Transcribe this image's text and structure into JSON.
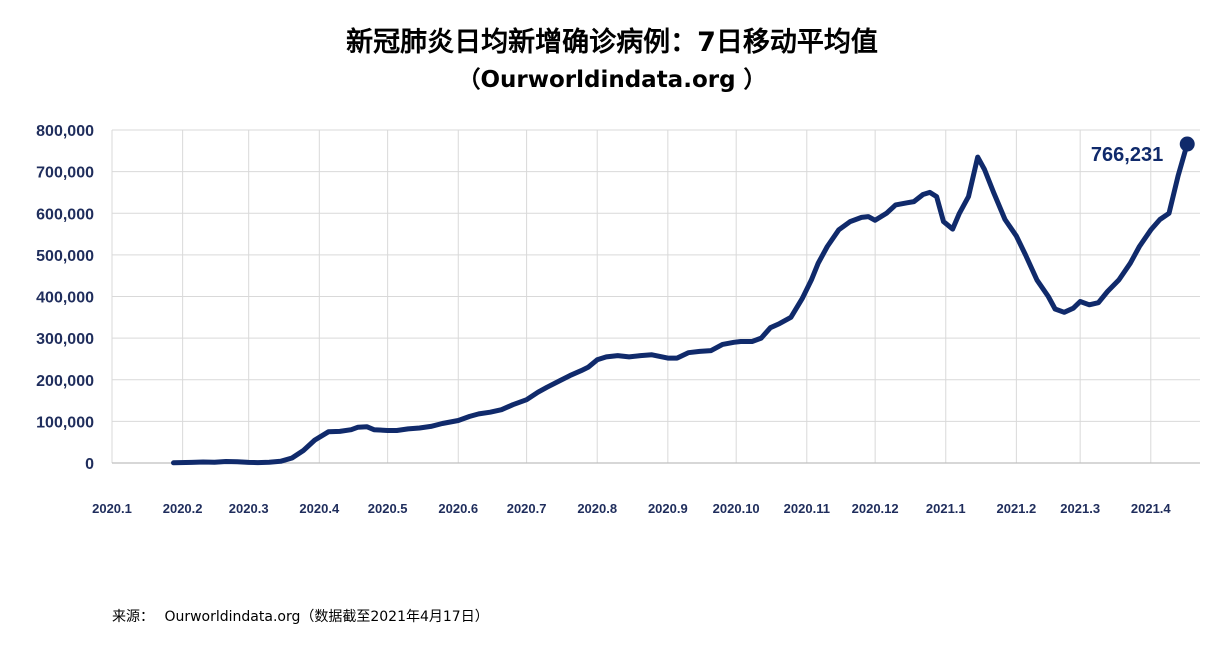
{
  "title_line1": "新冠肺炎日均新增确诊病例：7日移动平均值",
  "title_line2": "（Ourworldindata.org ）",
  "source_label": "来源：",
  "source_text": "Ourworldindata.org（数据截至2021年4月17日）",
  "colors": {
    "series": "#102a6b",
    "grid": "#d9d9d9",
    "axis_text": "#1f2d5c"
  },
  "chart_data": {
    "type": "line",
    "title": "新冠肺炎日均新增确诊病例：7日移动平均值",
    "subtitle": "（Ourworldindata.org ）",
    "xlabel": "",
    "ylabel": "",
    "ylim": [
      0,
      800000
    ],
    "yticks": [
      0,
      100000,
      200000,
      300000,
      400000,
      500000,
      600000,
      700000,
      800000
    ],
    "ytick_labels": [
      "0",
      "100,000",
      "200,000",
      "300,000",
      "400,000",
      "500,000",
      "600,000",
      "700,000",
      "800,000"
    ],
    "xlim": [
      "2020-01-01",
      "2021-04-17"
    ],
    "xticks": [
      "2020-01-01",
      "2020-02-01",
      "2020-03-01",
      "2020-04-01",
      "2020-05-01",
      "2020-06-01",
      "2020-07-01",
      "2020-08-01",
      "2020-09-01",
      "2020-10-01",
      "2020-11-01",
      "2020-12-01",
      "2021-01-01",
      "2021-02-01",
      "2021-03-01",
      "2021-04-01"
    ],
    "xtick_labels": [
      "2020.1",
      "2020.2",
      "2020.3",
      "2020.4",
      "2020.5",
      "2020.6",
      "2020.7",
      "2020.8",
      "2020.9",
      "2020.10",
      "2020.11",
      "2020.12",
      "2021.1",
      "2021.2",
      "2021.3",
      "2021.4"
    ],
    "grid": true,
    "series": [
      {
        "x": [
          "2020-01-28",
          "2020-02-05",
          "2020-02-10",
          "2020-02-15",
          "2020-02-20",
          "2020-02-25",
          "2020-03-01",
          "2020-03-05",
          "2020-03-10",
          "2020-03-15",
          "2020-03-20",
          "2020-03-25",
          "2020-03-30",
          "2020-04-05",
          "2020-04-10",
          "2020-04-15",
          "2020-04-18",
          "2020-04-22",
          "2020-04-25",
          "2020-05-01",
          "2020-05-05",
          "2020-05-10",
          "2020-05-15",
          "2020-05-20",
          "2020-05-25",
          "2020-06-01",
          "2020-06-06",
          "2020-06-10",
          "2020-06-15",
          "2020-06-20",
          "2020-06-25",
          "2020-07-01",
          "2020-07-06",
          "2020-07-10",
          "2020-07-15",
          "2020-07-20",
          "2020-07-25",
          "2020-07-28",
          "2020-08-01",
          "2020-08-05",
          "2020-08-10",
          "2020-08-15",
          "2020-08-20",
          "2020-08-25",
          "2020-09-01",
          "2020-09-05",
          "2020-09-10",
          "2020-09-15",
          "2020-09-20",
          "2020-09-25",
          "2020-09-30",
          "2020-10-03",
          "2020-10-08",
          "2020-10-12",
          "2020-10-16",
          "2020-10-20",
          "2020-10-25",
          "2020-10-30",
          "2020-11-03",
          "2020-11-06",
          "2020-11-10",
          "2020-11-15",
          "2020-11-20",
          "2020-11-25",
          "2020-11-28",
          "2020-12-01",
          "2020-12-06",
          "2020-12-10",
          "2020-12-15",
          "2020-12-18",
          "2020-12-22",
          "2020-12-25",
          "2020-12-28",
          "2020-12-31",
          "2021-01-04",
          "2021-01-07",
          "2021-01-11",
          "2021-01-15",
          "2021-01-18",
          "2021-01-22",
          "2021-01-27",
          "2021-02-01",
          "2021-02-05",
          "2021-02-10",
          "2021-02-15",
          "2021-02-18",
          "2021-02-22",
          "2021-02-26",
          "2021-03-01",
          "2021-03-05",
          "2021-03-09",
          "2021-03-13",
          "2021-03-18",
          "2021-03-23",
          "2021-03-27",
          "2021-04-01",
          "2021-04-05",
          "2021-04-09",
          "2021-04-13",
          "2021-04-17"
        ],
        "values": [
          500,
          1500,
          2500,
          2000,
          3500,
          3000,
          1500,
          1000,
          2000,
          4000,
          12000,
          30000,
          55000,
          75000,
          76000,
          80000,
          86000,
          87000,
          80000,
          78000,
          78000,
          82000,
          84000,
          88000,
          95000,
          102000,
          112000,
          118000,
          122000,
          128000,
          140000,
          152000,
          170000,
          182000,
          196000,
          210000,
          222000,
          230000,
          248000,
          255000,
          258000,
          255000,
          258000,
          260000,
          252000,
          252000,
          265000,
          268000,
          270000,
          285000,
          290000,
          292000,
          292000,
          300000,
          325000,
          335000,
          350000,
          395000,
          440000,
          480000,
          520000,
          560000,
          580000,
          590000,
          592000,
          583000,
          600000,
          620000,
          625000,
          628000,
          645000,
          650000,
          640000,
          580000,
          562000,
          600000,
          640000,
          735000,
          705000,
          650000,
          585000,
          545000,
          500000,
          440000,
          400000,
          370000,
          362000,
          372000,
          388000,
          380000,
          385000,
          412000,
          440000,
          480000,
          520000,
          560000,
          585000,
          600000,
          690000,
          766231
        ]
      }
    ],
    "annotations": [
      {
        "x": "2021-04-17",
        "y": 766231,
        "text": "766,231"
      }
    ]
  }
}
